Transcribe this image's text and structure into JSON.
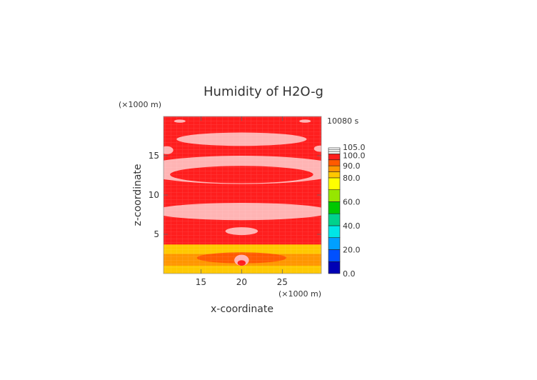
{
  "chart_data": {
    "type": "heatmap",
    "title": "Humidity of H2O-g",
    "time_label": "10080 s",
    "xlabel": "x-coordinate",
    "ylabel": "z-coordinate",
    "x_unit": "(×1000 m)",
    "z_unit": "(×1000 m)",
    "xlim": [
      10.4,
      29.8
    ],
    "ylim": [
      0,
      20
    ],
    "x_ticks": [
      15,
      20,
      25
    ],
    "y_ticks": [
      5,
      10,
      15
    ],
    "x_tick_labels": [
      "15",
      "20",
      "25"
    ],
    "y_tick_labels": [
      "5",
      "10",
      "15"
    ],
    "colorbar": {
      "levels": [
        0,
        10,
        20,
        30,
        40,
        50,
        60,
        70,
        80,
        85,
        90,
        95,
        100,
        105
      ],
      "tick_labels": [
        "105.0",
        "100.0",
        "90.0",
        "80.0",
        "60.0",
        "40.0",
        "20.0",
        "0.0"
      ],
      "tick_values": [
        105,
        100,
        90,
        80,
        60,
        40,
        20,
        0
      ],
      "colors": [
        "#0000b4",
        "#0050ff",
        "#00a0ff",
        "#00e6e6",
        "#00d28c",
        "#00c800",
        "#96e600",
        "#ffff00",
        "#ffc800",
        "#ff9600",
        "#ff5a00",
        "#ff1e1e",
        "#ffb4b4"
      ],
      "top_color": "#ffffff"
    },
    "field_description": {
      "base_value_percent": 97,
      "saturated_bands_value_percent": 102,
      "low_layer_values_percent": [
        82,
        88,
        92
      ]
    }
  }
}
